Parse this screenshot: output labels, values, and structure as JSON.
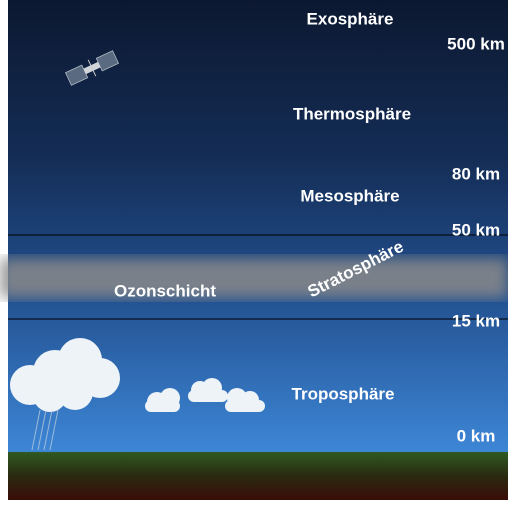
{
  "layers": {
    "exosphere": "Exosphäre",
    "thermosphere": "Thermosphäre",
    "mesosphere": "Mesosphäre",
    "stratosphere": "Stratosphäre",
    "ozone": "Ozonschicht",
    "troposphere": "Troposphäre"
  },
  "altitudes": {
    "exosphere": "500 km",
    "mesosphere_top": "80 km",
    "stratosphere_top": "50 km",
    "troposphere_top": "15 km",
    "ground": "0 km"
  }
}
